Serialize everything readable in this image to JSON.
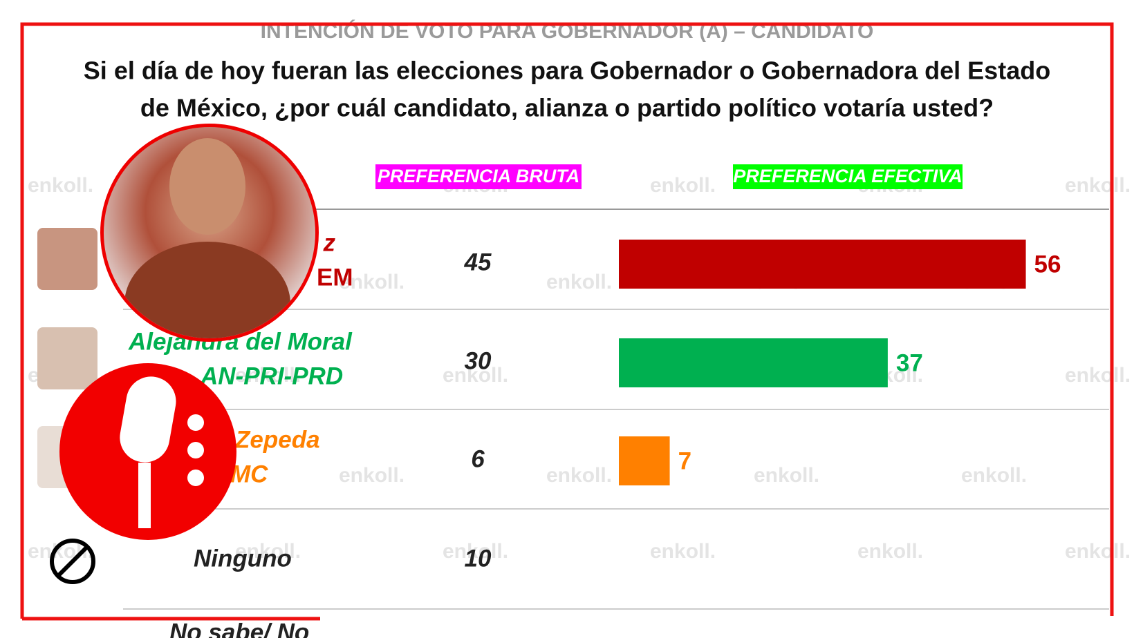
{
  "chart_data": {
    "type": "bar",
    "title": "INTENCIÓN DE VOTO PARA GOBERNADOR (A) – CANDIDATO",
    "question": [
      "Si el día de hoy fueran las elecciones para Gobernador o Gobernadora del Estado",
      "de México, ¿por cuál candidato, alianza o partido político votaría usted?"
    ],
    "watermark": "enkoll.",
    "candidates": [
      {
        "name": "z",
        "party": "EM",
        "color": "#c00000"
      },
      {
        "name": "Alejandra del Moral",
        "party": "AN-PRI-PRD",
        "color": "#00b050"
      },
      {
        "name": "Zepeda",
        "party": "MC",
        "color": "#ff8000"
      },
      {
        "name": "Ninguno",
        "color": "#222222"
      }
    ],
    "series": [
      {
        "name": "PREFERENCIA BRUTA",
        "label_color": "#ff00ff",
        "values": [
          45,
          30,
          6,
          10
        ]
      },
      {
        "name": "PREFERENCIA EFECTIVA",
        "label_color": "#00ff00",
        "values": [
          56,
          37,
          7,
          null
        ]
      }
    ],
    "xlim": [
      0,
      60
    ],
    "footer": "No sabe/ No"
  }
}
